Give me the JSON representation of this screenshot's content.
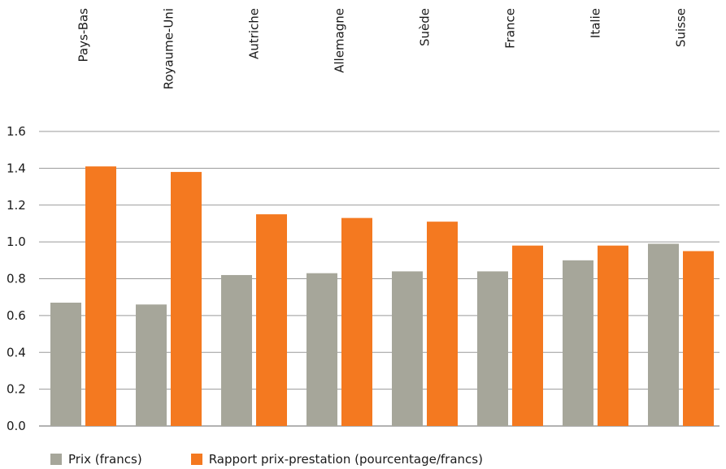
{
  "chart_data": {
    "type": "bar",
    "categories": [
      "Pays-Bas",
      "Royaume-Uni",
      "Autriche",
      "Allemagne",
      "Suède",
      "France",
      "Italie",
      "Suisse"
    ],
    "series": [
      {
        "name": "Prix (francs)",
        "color": "#a6a69a",
        "values": [
          0.67,
          0.66,
          0.82,
          0.83,
          0.84,
          0.84,
          0.9,
          0.99
        ]
      },
      {
        "name": "Rapport prix-prestation (pourcentage/francs)",
        "color": "#f47920",
        "values": [
          1.41,
          1.38,
          1.15,
          1.13,
          1.11,
          0.98,
          0.98,
          0.95
        ]
      }
    ],
    "yticks": [
      "0.0",
      "0.2",
      "0.4",
      "0.6",
      "0.8",
      "1.0",
      "1.2",
      "1.4",
      "1.6"
    ],
    "ylim": [
      0,
      1.6
    ],
    "grid": true,
    "legend_position": "bottom-left"
  }
}
